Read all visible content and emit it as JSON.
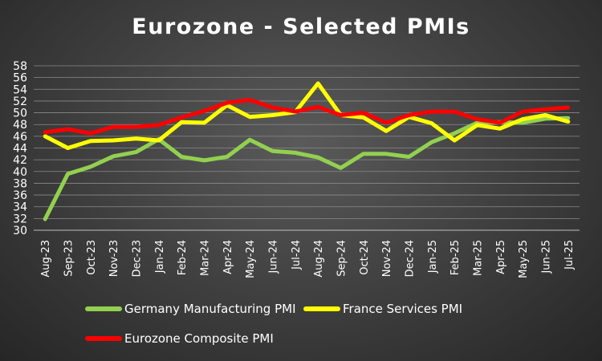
{
  "chart_data": {
    "type": "line",
    "title": "Eurozone - Selected PMIs",
    "categories": [
      "Aug-23",
      "Sep-23",
      "Oct-23",
      "Nov-23",
      "Dec-23",
      "Jan-24",
      "Feb-24",
      "Mar-24",
      "Apr-24",
      "May-24",
      "Jun-24",
      "Jul-24",
      "Aug-24",
      "Sep-24",
      "Oct-24",
      "Nov-24",
      "Dec-24",
      "Jan-25",
      "Feb-25",
      "Mar-25",
      "Apr-25",
      "May-25",
      "Jun-25",
      "Jul-25"
    ],
    "yticks": [
      30,
      32,
      34,
      36,
      38,
      40,
      42,
      44,
      46,
      48,
      50,
      52,
      54,
      56,
      58
    ],
    "ylim": [
      30,
      58
    ],
    "grid": true,
    "legend_position": "bottom",
    "series": [
      {
        "name": "Germany Manufacturing PMI",
        "color": "#92d050",
        "values": [
          31.9,
          39.6,
          40.8,
          42.6,
          43.3,
          45.5,
          42.5,
          41.9,
          42.5,
          45.4,
          43.5,
          43.2,
          42.4,
          40.6,
          43.0,
          43.0,
          42.5,
          45.0,
          46.5,
          48.3,
          48.4,
          48.3,
          49.0,
          49.1
        ]
      },
      {
        "name": "France Services PMI",
        "color": "#ffff00",
        "values": [
          46.0,
          44.0,
          45.2,
          45.3,
          45.6,
          45.3,
          48.4,
          48.3,
          51.3,
          49.3,
          49.6,
          50.1,
          55.0,
          49.6,
          49.2,
          46.9,
          49.3,
          48.2,
          45.3,
          47.9,
          47.3,
          48.9,
          49.6,
          48.5
        ]
      },
      {
        "name": "Eurozone Composite PMI",
        "color": "#ff0000",
        "values": [
          46.7,
          47.2,
          46.5,
          47.6,
          47.6,
          47.9,
          49.2,
          50.3,
          51.7,
          52.2,
          50.9,
          50.2,
          51.0,
          49.6,
          50.0,
          48.3,
          49.6,
          50.2,
          50.2,
          48.9,
          48.3,
          50.2,
          50.6,
          50.9
        ]
      }
    ]
  }
}
